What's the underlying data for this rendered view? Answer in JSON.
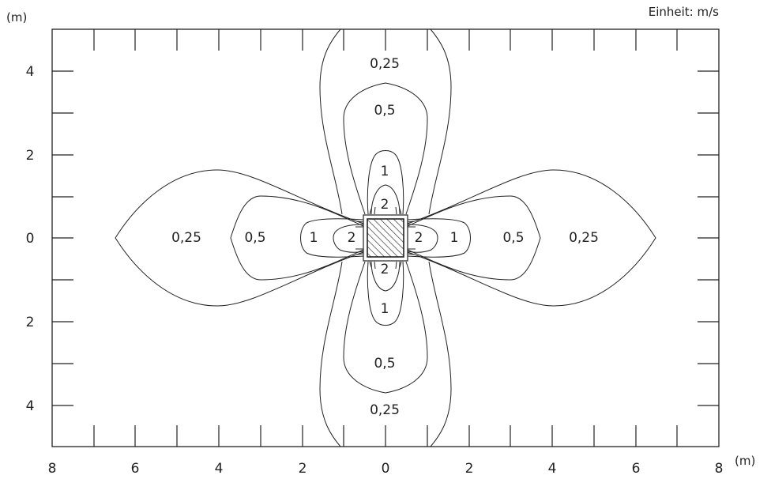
{
  "units": {
    "y_axis": "(m)",
    "x_axis": "(m)",
    "note": "Einheit: m/s"
  },
  "x_tick_labels": [
    "8",
    "6",
    "4",
    "2",
    "0",
    "2",
    "4",
    "6",
    "8"
  ],
  "y_tick_labels": [
    "4",
    "2",
    "0",
    "2",
    "4"
  ],
  "contour_labels": [
    "0,25",
    "0,5",
    "1",
    "2",
    "2",
    "1",
    "0,5",
    "0,25",
    "0,25",
    "0,5",
    "1",
    "2",
    "2",
    "1",
    "0,5",
    "0,25"
  ],
  "chart_data": {
    "type": "contour",
    "xlabel": "(m)",
    "ylabel": "(m)",
    "xlim": [
      -8,
      8
    ],
    "ylim": [
      -5,
      5
    ],
    "unit": "m/s",
    "levels": [
      0.25,
      0.5,
      1,
      2
    ]
  }
}
